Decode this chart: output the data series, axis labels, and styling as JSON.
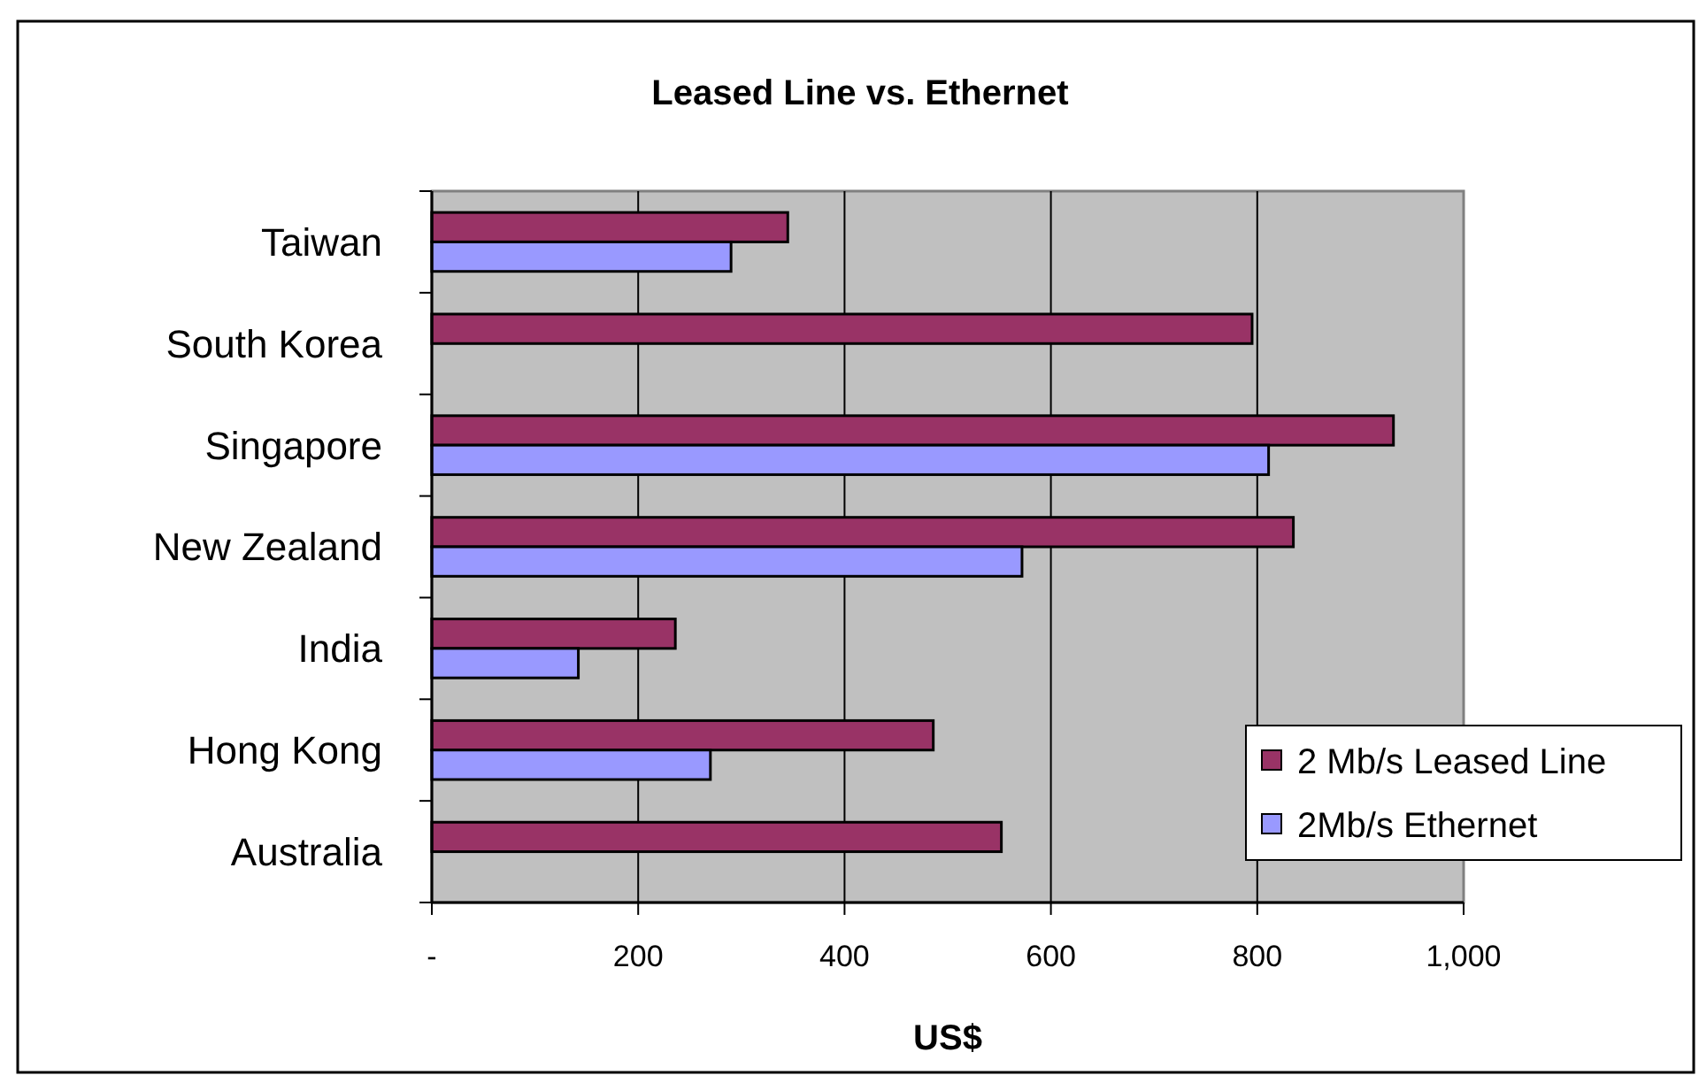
{
  "chart_data": {
    "type": "bar",
    "orientation": "horizontal",
    "title": "Leased Line vs. Ethernet",
    "xlabel": "US$",
    "categories": [
      "Taiwan",
      "South Korea",
      "Singapore",
      "New Zealand",
      "India",
      "Hong Kong",
      "Australia"
    ],
    "series": [
      {
        "name": "2 Mb/s Leased Line",
        "color": "#993366",
        "values": [
          345,
          795,
          932,
          835,
          236,
          486,
          552
        ]
      },
      {
        "name": "2Mb/s Ethernet",
        "color": "#9999ff",
        "values": [
          290,
          null,
          811,
          572,
          142,
          270,
          null
        ]
      }
    ],
    "xlim": [
      0,
      1000
    ],
    "xticks": [
      {
        "value": 0,
        "label": "-"
      },
      200,
      400,
      600,
      800,
      {
        "value": 1000,
        "label": "1,000"
      }
    ],
    "grid": "x",
    "legend": "right"
  }
}
